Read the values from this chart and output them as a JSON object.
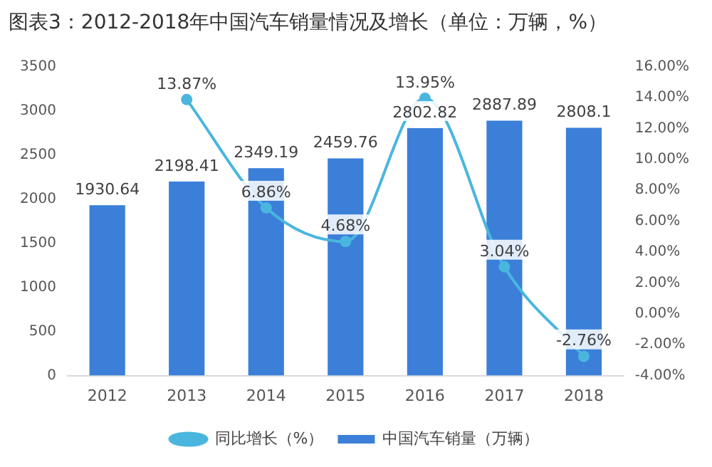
{
  "chart_data": {
    "type": "bar",
    "title": "图表3：2012-2018年中国汽车销量情况及增长（单位：万辆，%）",
    "categories": [
      "2012",
      "2013",
      "2014",
      "2015",
      "2016",
      "2017",
      "2018"
    ],
    "series": [
      {
        "name": "中国汽车销量（万辆）",
        "color": "#3b7fd9",
        "values": [
          1930.64,
          2198.41,
          2349.19,
          2459.76,
          2802.82,
          2887.89,
          2808.1
        ]
      },
      {
        "name": "同比增长（%）",
        "type": "line",
        "axis": "y2",
        "color": "#4ab6de",
        "values": [
          null,
          13.87,
          6.86,
          4.68,
          13.95,
          3.04,
          -2.76
        ],
        "value_labels": [
          null,
          "13.87%",
          "6.86%",
          "4.68%",
          "13.95%",
          "3.04%",
          "-2.76%"
        ]
      }
    ],
    "ylim": [
      0,
      3500
    ],
    "yticks": [
      0,
      500,
      1000,
      1500,
      2000,
      2500,
      3000,
      3500
    ],
    "y2lim": [
      -4,
      16
    ],
    "y2ticks": [
      {
        "value": -4,
        "label": "-4.00%"
      },
      {
        "value": -2,
        "label": "-2.00%"
      },
      {
        "value": 0,
        "label": "0.00%"
      },
      {
        "value": 2,
        "label": "2.00%"
      },
      {
        "value": 4,
        "label": "4.00%"
      },
      {
        "value": 6,
        "label": "6.00%"
      },
      {
        "value": 8,
        "label": "8.00%"
      },
      {
        "value": 10,
        "label": "10.00%"
      },
      {
        "value": 12,
        "label": "12.00%"
      },
      {
        "value": 14,
        "label": "14.00%"
      },
      {
        "value": 16,
        "label": "16.00%"
      }
    ],
    "data_labels": true,
    "grid": false,
    "legend": "bottom",
    "marker": "circle",
    "line_style": "solid"
  }
}
